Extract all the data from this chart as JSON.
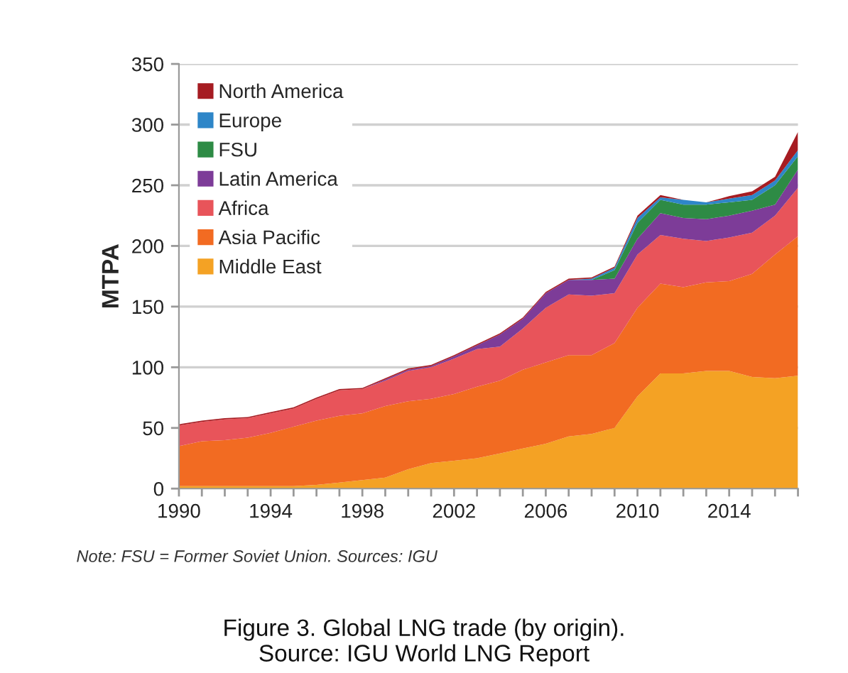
{
  "chart_data": {
    "type": "area",
    "stacked": true,
    "ylabel": "MTPA",
    "x": [
      1990,
      1991,
      1992,
      1993,
      1994,
      1995,
      1996,
      1997,
      1998,
      1999,
      2000,
      2001,
      2002,
      2003,
      2004,
      2005,
      2006,
      2007,
      2008,
      2009,
      2010,
      2011,
      2012,
      2013,
      2014,
      2015,
      2016,
      2017
    ],
    "series": [
      {
        "name": "Middle East",
        "color": "#f4a224",
        "values": [
          2,
          2,
          2,
          2,
          2,
          2,
          3,
          5,
          7,
          9,
          16,
          21,
          23,
          25,
          29,
          33,
          37,
          43,
          45,
          50,
          76,
          95,
          95,
          97,
          97,
          92,
          91,
          93
        ]
      },
      {
        "name": "Asia Pacific",
        "color": "#f26b22",
        "values": [
          33,
          37,
          38,
          40,
          44,
          49,
          53,
          55,
          55,
          59,
          56,
          53,
          55,
          59,
          60,
          65,
          67,
          67,
          65,
          70,
          73,
          74,
          71,
          73,
          74,
          85,
          102,
          115
        ]
      },
      {
        "name": "Africa",
        "color": "#e8545a",
        "values": [
          17,
          16,
          17,
          16,
          16,
          15,
          18,
          21,
          20,
          21,
          25,
          26,
          29,
          31,
          28,
          34,
          45,
          50,
          49,
          41,
          44,
          40,
          40,
          34,
          36,
          34,
          32,
          40
        ]
      },
      {
        "name": "Latin America",
        "color": "#7d3c98",
        "values": [
          0,
          0,
          0,
          0,
          0,
          0,
          0,
          0,
          0,
          1,
          1,
          1,
          2,
          3,
          10,
          8,
          12,
          12,
          13,
          12,
          13,
          18,
          17,
          18,
          18,
          18,
          9,
          15
        ]
      },
      {
        "name": "FSU",
        "color": "#2e8b45",
        "values": [
          0,
          0,
          0,
          0,
          0,
          0,
          0,
          0,
          0,
          0,
          0,
          0,
          0,
          0,
          0,
          0,
          0,
          0,
          0,
          7,
          13,
          11,
          11,
          12,
          11,
          9,
          16,
          11
        ]
      },
      {
        "name": "Europe",
        "color": "#2e86c8",
        "values": [
          0,
          0,
          0,
          0,
          0,
          0,
          0,
          0,
          0,
          0,
          0,
          0,
          0,
          0,
          0,
          0,
          0,
          0,
          1,
          2,
          4,
          2,
          4,
          2,
          3,
          4,
          4,
          5
        ]
      },
      {
        "name": "North America",
        "color": "#a61c22",
        "values": [
          1,
          1,
          1,
          1,
          1,
          1,
          1,
          1,
          1,
          1,
          1,
          1,
          1,
          1,
          1,
          1,
          1,
          1,
          1,
          1,
          2,
          2,
          0,
          0,
          2,
          3,
          3,
          15
        ]
      }
    ],
    "xlim": [
      1990,
      2017
    ],
    "xticks": [
      1990,
      {
        "value": 1991,
        "label": null
      },
      {
        "value": 1992,
        "label": null
      },
      {
        "value": 1993,
        "label": null
      },
      1994,
      {
        "value": 1995,
        "label": null
      },
      {
        "value": 1996,
        "label": null
      },
      {
        "value": 1997,
        "label": null
      },
      1998,
      {
        "value": 1999,
        "label": null
      },
      {
        "value": 2000,
        "label": null
      },
      {
        "value": 2001,
        "label": null
      },
      2002,
      {
        "value": 2003,
        "label": null
      },
      {
        "value": 2004,
        "label": null
      },
      {
        "value": 2005,
        "label": null
      },
      2006,
      {
        "value": 2007,
        "label": null
      },
      {
        "value": 2008,
        "label": null
      },
      {
        "value": 2009,
        "label": null
      },
      2010,
      {
        "value": 2011,
        "label": null
      },
      {
        "value": 2012,
        "label": null
      },
      {
        "value": 2013,
        "label": null
      },
      2014,
      {
        "value": 2015,
        "label": null
      },
      {
        "value": 2016,
        "label": null
      },
      {
        "value": 2017,
        "label": null
      }
    ],
    "ylim": [
      0,
      350
    ],
    "yticks": [
      0,
      50,
      100,
      150,
      200,
      250,
      300,
      350
    ],
    "grid": "y",
    "legend": "top left",
    "annotations": [
      "Note: FSU = Former Soviet Union. Sources: IGU",
      "Figure 3. Global LNG trade (by origin).\nSource: IGU World LNG Report"
    ]
  }
}
